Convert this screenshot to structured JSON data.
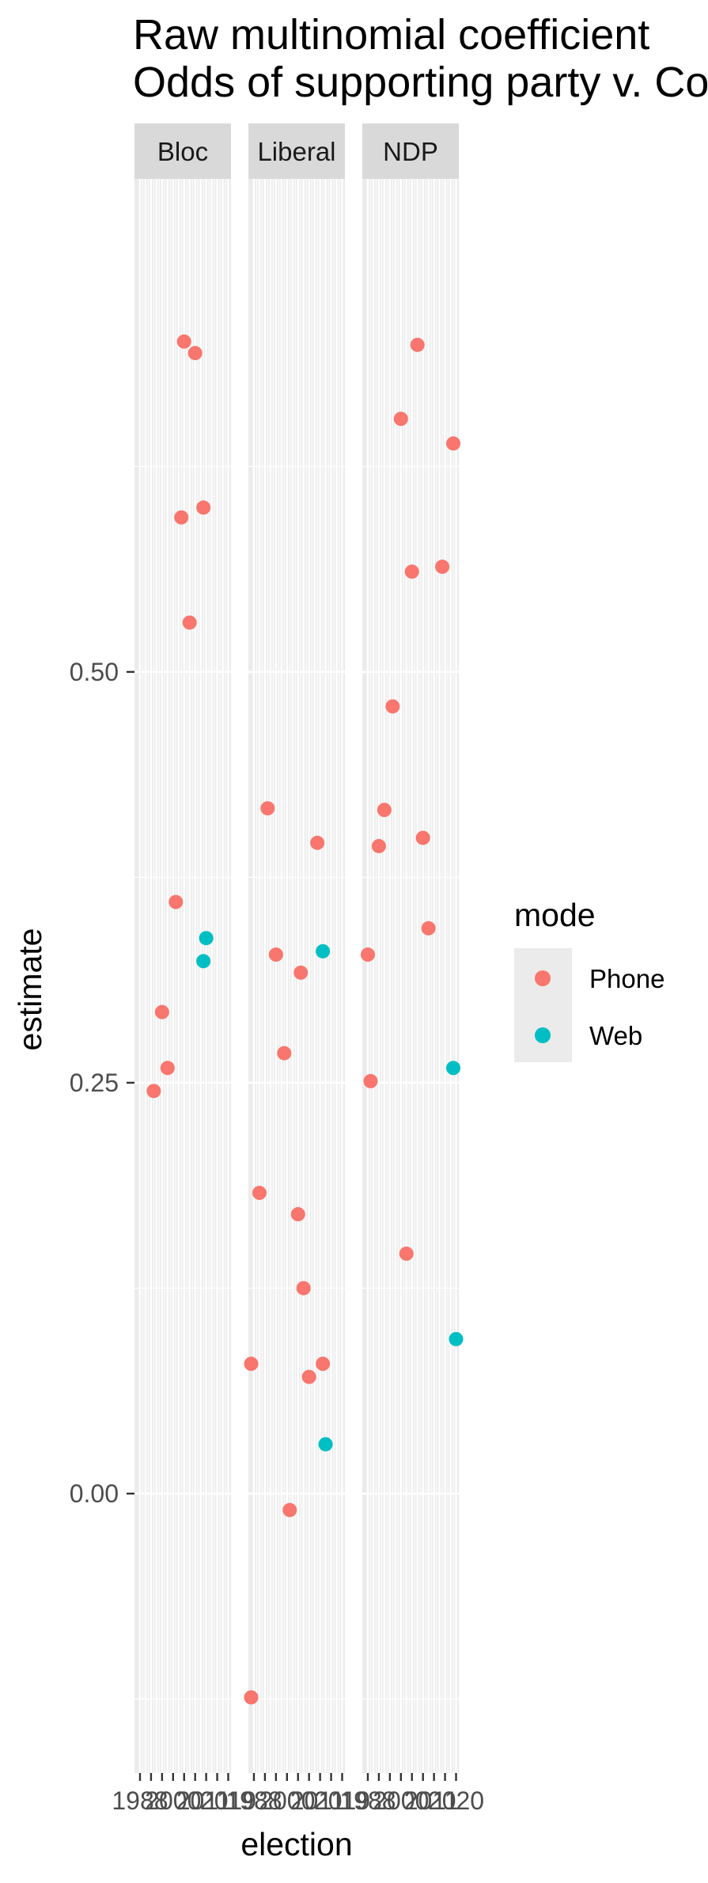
{
  "chart_data": {
    "type": "scatter",
    "title": "Raw multinomial coefficient",
    "subtitle": "Odds of supporting party v. Co",
    "xlabel": "election",
    "ylabel": "estimate",
    "facets": [
      "Bloc",
      "Liberal",
      "NDP"
    ],
    "x_tick_labels": [
      "1988",
      "2000",
      "2011",
      "2019",
      "1988",
      "2000",
      "2011",
      "2019",
      "1988",
      "2000",
      "2011",
      "2020"
    ],
    "xlim": [
      1986,
      2021
    ],
    "ylim": [
      -0.17,
      0.8
    ],
    "y_ticks": [
      {
        "value": 0.0,
        "label": "0.00"
      },
      {
        "value": 0.25,
        "label": "0.25"
      },
      {
        "value": 0.5,
        "label": "0.50"
      }
    ],
    "legend": {
      "title": "mode",
      "position": "right"
    },
    "series": [
      {
        "name": "Phone",
        "color": "#F8766D",
        "points": [
          {
            "facet": "Bloc",
            "x": 1993,
            "y": 0.245
          },
          {
            "facet": "Bloc",
            "x": 1996,
            "y": 0.293
          },
          {
            "facet": "Bloc",
            "x": 1998,
            "y": 0.259
          },
          {
            "facet": "Bloc",
            "x": 2001,
            "y": 0.36
          },
          {
            "facet": "Bloc",
            "x": 2003,
            "y": 0.594
          },
          {
            "facet": "Bloc",
            "x": 2004,
            "y": 0.701
          },
          {
            "facet": "Bloc",
            "x": 2006,
            "y": 0.53
          },
          {
            "facet": "Bloc",
            "x": 2008,
            "y": 0.694
          },
          {
            "facet": "Bloc",
            "x": 2011,
            "y": 0.6
          },
          {
            "facet": "Liberal",
            "x": 1987,
            "y": 0.079
          },
          {
            "facet": "Liberal",
            "x": 1987,
            "y": -0.124
          },
          {
            "facet": "Liberal",
            "x": 1990,
            "y": 0.183
          },
          {
            "facet": "Liberal",
            "x": 1993,
            "y": 0.417
          },
          {
            "facet": "Liberal",
            "x": 1996,
            "y": 0.328
          },
          {
            "facet": "Liberal",
            "x": 1999,
            "y": 0.268
          },
          {
            "facet": "Liberal",
            "x": 2001,
            "y": -0.01
          },
          {
            "facet": "Liberal",
            "x": 2004,
            "y": 0.17
          },
          {
            "facet": "Liberal",
            "x": 2005,
            "y": 0.317
          },
          {
            "facet": "Liberal",
            "x": 2006,
            "y": 0.125
          },
          {
            "facet": "Liberal",
            "x": 2008,
            "y": 0.071
          },
          {
            "facet": "Liberal",
            "x": 2011,
            "y": 0.396
          },
          {
            "facet": "Liberal",
            "x": 2013,
            "y": 0.079
          },
          {
            "facet": "NDP",
            "x": 1988,
            "y": 0.328
          },
          {
            "facet": "NDP",
            "x": 1989,
            "y": 0.251
          },
          {
            "facet": "NDP",
            "x": 1992,
            "y": 0.394
          },
          {
            "facet": "NDP",
            "x": 1994,
            "y": 0.416
          },
          {
            "facet": "NDP",
            "x": 1997,
            "y": 0.479
          },
          {
            "facet": "NDP",
            "x": 2000,
            "y": 0.654
          },
          {
            "facet": "NDP",
            "x": 2002,
            "y": 0.146
          },
          {
            "facet": "NDP",
            "x": 2004,
            "y": 0.561
          },
          {
            "facet": "NDP",
            "x": 2006,
            "y": 0.699
          },
          {
            "facet": "NDP",
            "x": 2008,
            "y": 0.399
          },
          {
            "facet": "NDP",
            "x": 2010,
            "y": 0.344
          },
          {
            "facet": "NDP",
            "x": 2015,
            "y": 0.564
          },
          {
            "facet": "NDP",
            "x": 2019,
            "y": 0.639
          }
        ]
      },
      {
        "name": "Web",
        "color": "#00BFC4",
        "points": [
          {
            "facet": "Bloc",
            "x": 2011,
            "y": 0.324
          },
          {
            "facet": "Bloc",
            "x": 2012,
            "y": 0.338
          },
          {
            "facet": "Liberal",
            "x": 2013,
            "y": 0.33
          },
          {
            "facet": "Liberal",
            "x": 2014,
            "y": 0.03
          },
          {
            "facet": "NDP",
            "x": 2019,
            "y": 0.259
          },
          {
            "facet": "NDP",
            "x": 2020,
            "y": 0.094
          }
        ]
      }
    ]
  }
}
